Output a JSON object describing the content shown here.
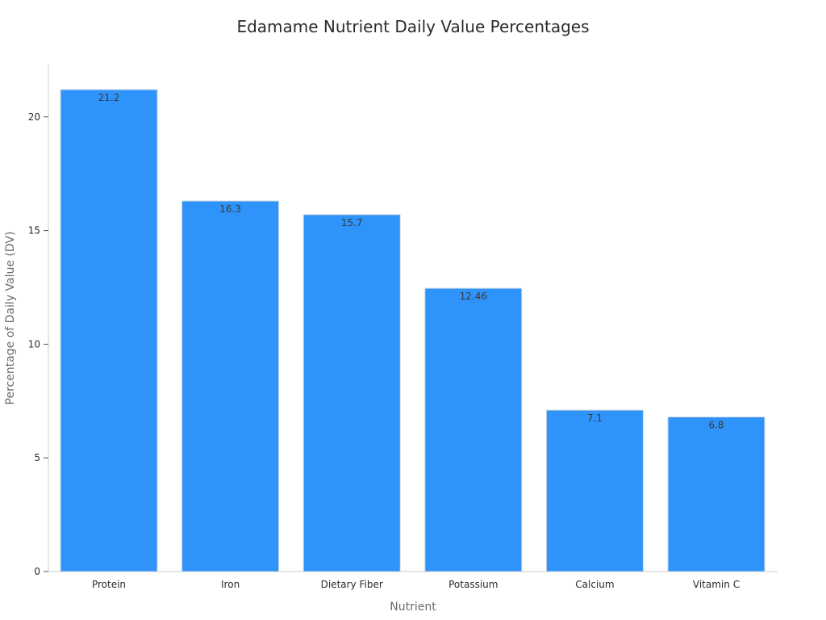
{
  "chart_data": {
    "type": "bar",
    "title": "Edamame Nutrient Daily Value Percentages",
    "xlabel": "Nutrient",
    "ylabel": "Percentage of Daily Value (DV)",
    "categories": [
      "Protein",
      "Iron",
      "Dietary Fiber",
      "Potassium",
      "Calcium",
      "Vitamin C"
    ],
    "values": [
      21.2,
      16.3,
      15.7,
      12.46,
      7.1,
      6.8
    ],
    "data_labels": [
      "21.2",
      "16.3",
      "15.7",
      "12.46",
      "7.1",
      "6.8"
    ],
    "ylim": [
      0,
      22.3
    ],
    "yticks": [
      0,
      5,
      10,
      15,
      20
    ],
    "ytick_labels": [
      "0",
      "5",
      "10",
      "15",
      "20"
    ],
    "bar_color": "#2e93fa",
    "grid": false,
    "legend": "none"
  }
}
